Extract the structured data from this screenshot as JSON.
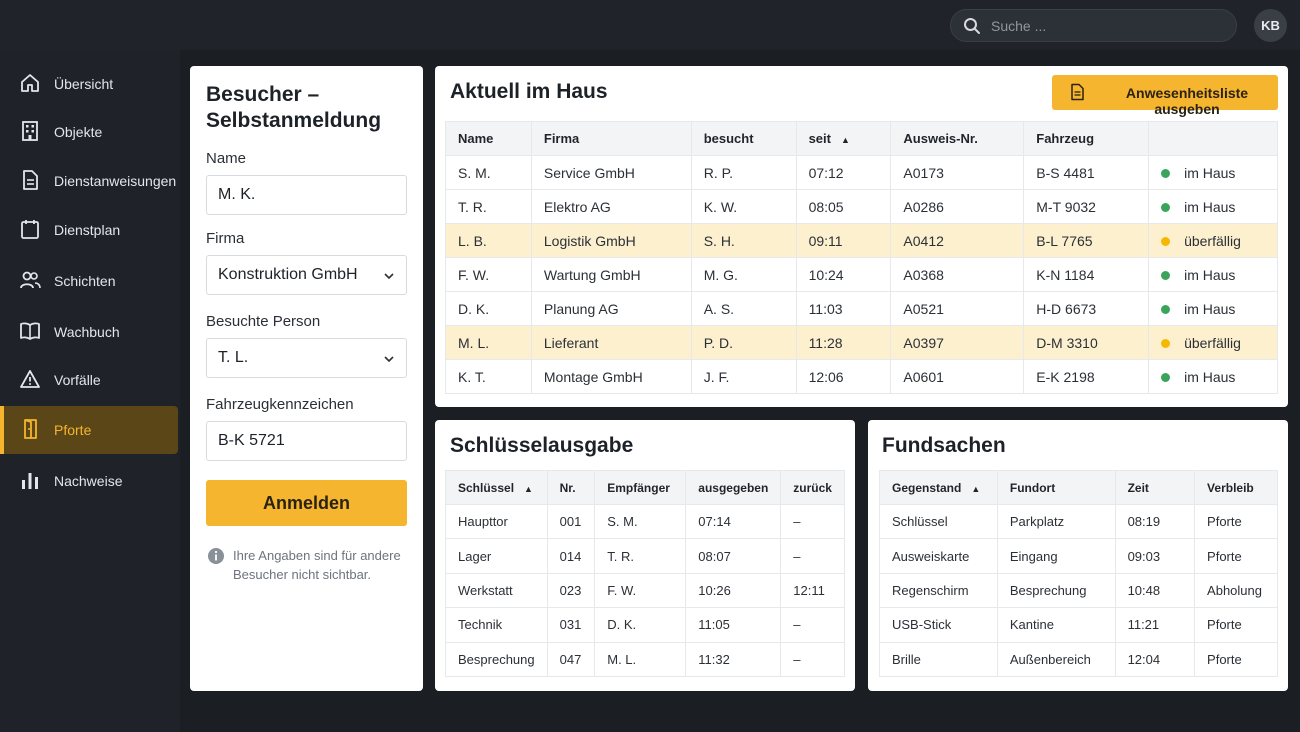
{
  "search": {
    "placeholder": "Suche ..."
  },
  "user": {
    "initials": "KB"
  },
  "sidebar": {
    "items": [
      {
        "label": "Übersicht"
      },
      {
        "label": "Objekte"
      },
      {
        "label": "Dienstanweisungen"
      },
      {
        "label": "Dienstplan"
      },
      {
        "label": "Schichten"
      },
      {
        "label": "Wachbuch"
      },
      {
        "label": "Vorfälle"
      },
      {
        "label": "Pforte",
        "active": true
      },
      {
        "label": "Nachweise"
      }
    ]
  },
  "visitor_form": {
    "title": "Besucher – Selbstanmeldung",
    "name_label": "Name",
    "name_value": "M. K.",
    "company_label": "Firma",
    "company_value": "Konstruktion GmbH",
    "person_label": "Besuchte Person",
    "person_value": "T. L.",
    "plate_label": "Fahrzeugkennzeichen",
    "plate_value": "B-K 5721",
    "submit_label": "Anmelden",
    "hint": "Ihre Angaben sind für andere Besucher nicht sichtbar."
  },
  "presence": {
    "title": "Aktuell im Haus",
    "export_label": "Anwesenheitsliste ausgeben",
    "columns": [
      "Name",
      "Firma",
      "besucht",
      "seit",
      "Ausweis-Nr.",
      "Fahrzeug",
      ""
    ],
    "rows": [
      {
        "name": "S. M.",
        "company": "Service GmbH",
        "visited": "R. P.",
        "since": "07:12",
        "badge": "A0173",
        "vehicle": "B-S 4481",
        "status": "im Haus",
        "overdue": false
      },
      {
        "name": "T. R.",
        "company": "Elektro AG",
        "visited": "K. W.",
        "since": "08:05",
        "badge": "A0286",
        "vehicle": "M-T 9032",
        "status": "im Haus",
        "overdue": false
      },
      {
        "name": "L. B.",
        "company": "Logistik GmbH",
        "visited": "S. H.",
        "since": "09:11",
        "badge": "A0412",
        "vehicle": "B-L 7765",
        "status": "überfällig",
        "overdue": true
      },
      {
        "name": "F. W.",
        "company": "Wartung GmbH",
        "visited": "M. G.",
        "since": "10:24",
        "badge": "A0368",
        "vehicle": "K-N 1184",
        "status": "im Haus",
        "overdue": false
      },
      {
        "name": "D. K.",
        "company": "Planung AG",
        "visited": "A. S.",
        "since": "11:03",
        "badge": "A0521",
        "vehicle": "H-D 6673",
        "status": "im Haus",
        "overdue": false
      },
      {
        "name": "M. L.",
        "company": "Lieferant",
        "visited": "P. D.",
        "since": "11:28",
        "badge": "A0397",
        "vehicle": "D-M 3310",
        "status": "überfällig",
        "overdue": true
      },
      {
        "name": "K. T.",
        "company": "Montage GmbH",
        "visited": "J. F.",
        "since": "12:06",
        "badge": "A0601",
        "vehicle": "E-K 2198",
        "status": "im Haus",
        "overdue": false
      }
    ]
  },
  "keys": {
    "title": "Schlüsselausgabe",
    "columns": [
      "Schlüssel",
      "Nr.",
      "Empfänger",
      "ausgegeben",
      "zurück"
    ],
    "rows": [
      {
        "key": "Haupttor",
        "nr": "001",
        "recipient": "S. M.",
        "issued": "07:14",
        "returned": "–"
      },
      {
        "key": "Lager",
        "nr": "014",
        "recipient": "T. R.",
        "issued": "08:07",
        "returned": "–"
      },
      {
        "key": "Werkstatt",
        "nr": "023",
        "recipient": "F. W.",
        "issued": "10:26",
        "returned": "12:11"
      },
      {
        "key": "Technik",
        "nr": "031",
        "recipient": "D. K.",
        "issued": "11:05",
        "returned": "–"
      },
      {
        "key": "Besprechung",
        "nr": "047",
        "recipient": "M. L.",
        "issued": "11:32",
        "returned": "–"
      }
    ]
  },
  "lost": {
    "title": "Fundsachen",
    "columns": [
      "Gegenstand",
      "Fundort",
      "Zeit",
      "Verbleib"
    ],
    "rows": [
      {
        "item": "Schlüssel",
        "place": "Parkplatz",
        "time": "08:19",
        "location": "Pforte"
      },
      {
        "item": "Ausweiskarte",
        "place": "Eingang",
        "time": "09:03",
        "location": "Pforte"
      },
      {
        "item": "Regenschirm",
        "place": "Besprechung",
        "time": "10:48",
        "location": "Abholung"
      },
      {
        "item": "USB-Stick",
        "place": "Kantine",
        "time": "11:21",
        "location": "Pforte"
      },
      {
        "item": "Brille",
        "place": "Außenbereich",
        "time": "12:04",
        "location": "Pforte"
      }
    ]
  },
  "colors": {
    "accent": "#f6b52e",
    "status_ok": "#3aa55a",
    "status_overdue": "#f5b800",
    "overdue_row": "#fdf0cf"
  },
  "icons": {
    "search": "search-icon",
    "nav": [
      "home-icon",
      "building-icon",
      "document-icon",
      "calendar-icon",
      "users-icon",
      "book-icon",
      "warning-icon",
      "door-icon",
      "bar-chart-icon"
    ],
    "export": "document-icon",
    "info": "info-icon"
  }
}
